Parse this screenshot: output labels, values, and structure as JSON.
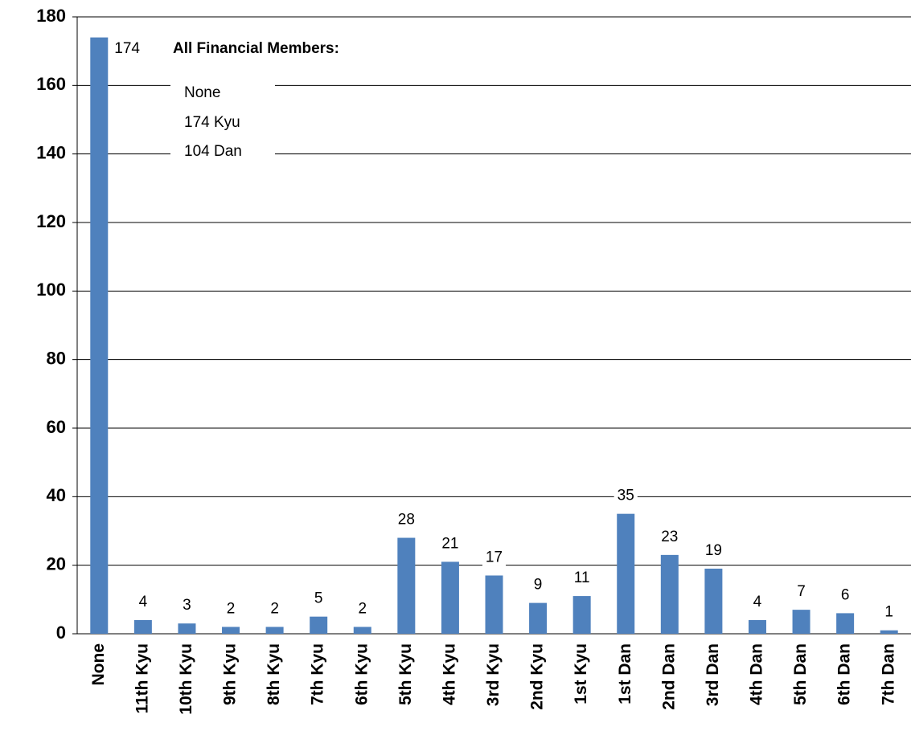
{
  "chart_data": {
    "type": "bar",
    "categories": [
      "None",
      "11th Kyu",
      "10th Kyu",
      "9th Kyu",
      "8th Kyu",
      "7th Kyu",
      "6th Kyu",
      "5th Kyu",
      "4th Kyu",
      "3rd Kyu",
      "2nd Kyu",
      "1st Kyu",
      "1st Dan",
      "2nd Dan",
      "3rd Dan",
      "4th Dan",
      "5th Dan",
      "6th Dan",
      "7th Dan"
    ],
    "values": [
      174,
      4,
      3,
      2,
      2,
      5,
      2,
      28,
      21,
      17,
      9,
      11,
      35,
      23,
      19,
      4,
      7,
      6,
      1
    ],
    "color": "#4f81bd",
    "ylim": [
      0,
      180
    ],
    "yticks": [
      0,
      20,
      40,
      60,
      80,
      100,
      120,
      140,
      160,
      180
    ],
    "grid": true,
    "annotations": [
      "All Financial Members:",
      "None",
      "174 Kyu",
      "104 Dan"
    ]
  }
}
